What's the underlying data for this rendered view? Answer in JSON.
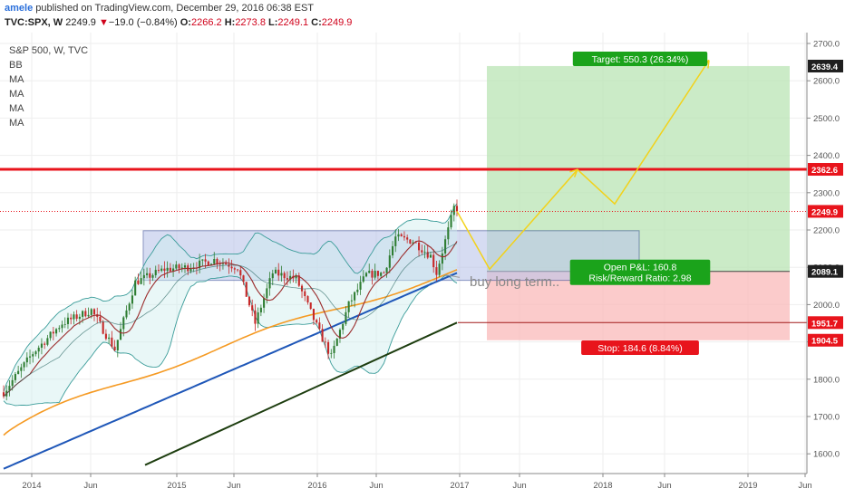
{
  "header": {
    "user": "amele",
    "published_text": "published on TradingView.com, December 29, 2016 06:38 EST",
    "symbol": "TVC:SPX, W",
    "last": "2249.9",
    "down_arrow": "▼",
    "change": "−19.0 (−0.84%)",
    "o_label": "O:",
    "o": "2266.2",
    "h_label": "H:",
    "h": "2273.8",
    "l_label": "L:",
    "l": "2249.1",
    "c_label": "C:",
    "c": "2249.9"
  },
  "legend": {
    "title": "S&P 500, W, TVC",
    "indicators": [
      "BB",
      "MA",
      "MA",
      "MA",
      "MA"
    ]
  },
  "chart_data": {
    "type": "candlestick",
    "x_ticks": [
      "2014",
      "Jun",
      "2015",
      "Jun",
      "2016",
      "Jun",
      "2017",
      "Jun",
      "2018",
      "Jun",
      "2019",
      "Jun"
    ],
    "y_ticks": [
      1600,
      1700,
      1800,
      1900,
      2000,
      2100,
      2200,
      2300,
      2400,
      2500,
      2600,
      2700
    ],
    "ylim": [
      1570,
      2720
    ],
    "price_labels": [
      {
        "value": 2639.4,
        "label": "2639.4",
        "color": "#1f1f1f"
      },
      {
        "value": 2362.6,
        "label": "2362.6",
        "color": "#e8141c"
      },
      {
        "value": 2249.9,
        "label": "2249.9",
        "color": "#e8141c"
      },
      {
        "value": 2089.1,
        "label": "2089.1",
        "color": "#1f1f1f"
      },
      {
        "value": 1951.7,
        "label": "1951.7",
        "color": "#e8141c"
      },
      {
        "value": 1904.5,
        "label": "1904.5",
        "color": "#e8141c"
      }
    ],
    "resistance_line": 2362.6,
    "last_price": 2249.9,
    "range_box": {
      "top": 2198,
      "bottom": 2065
    },
    "position": {
      "target_label": "Target: 550.3 (26.34%)",
      "stop_label": "Stop: 184.6 (8.84%)",
      "pnl_label": "Open P&L: 160.8",
      "rr_label": "Risk/Reward Ratio: 2.98",
      "target": 2639.4,
      "entry": 2089.1,
      "stop": 1904.5
    },
    "annotation": "buy long term..",
    "projection_path": [
      2249.9,
      2095,
      2362,
      2270,
      2655
    ],
    "ma200_end": 1951.7,
    "colors": {
      "up": "#2e7d32",
      "down": "#c62828",
      "resistance": "#e8141c",
      "projection": "#f2d21b",
      "ma_orange": "#f59a23",
      "ma_blue": "#1f57b8",
      "ma_dark": "#1d3d0f",
      "ma_red": "#8b1a1a",
      "bb": "#3a9c99"
    }
  }
}
